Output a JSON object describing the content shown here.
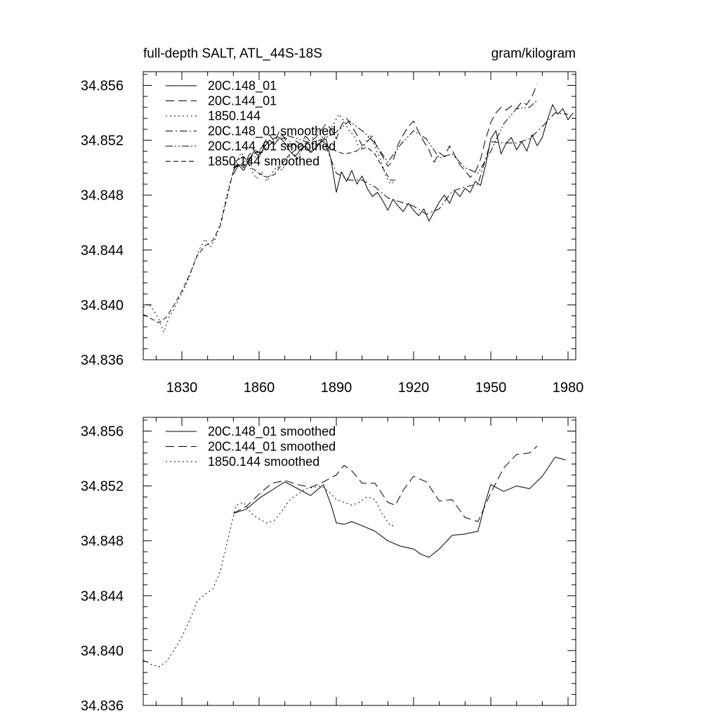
{
  "figure": {
    "left_title": "full-depth SALT, ATL_44S-18S",
    "right_title": "gram/kilogram"
  },
  "chart_data": [
    {
      "type": "line",
      "title": "full-depth SALT, ATL_44S-18S",
      "units": "gram/kilogram",
      "xlim": [
        1815,
        1983
      ],
      "ylim": [
        34.836,
        34.857
      ],
      "x_ticks": [
        1830,
        1860,
        1890,
        1920,
        1950,
        1980
      ],
      "x_tick_labels": [
        "1830",
        "1860",
        "1890",
        "1920",
        "1950",
        "1980"
      ],
      "y_ticks": [
        34.836,
        34.84,
        34.844,
        34.848,
        34.852,
        34.856
      ],
      "y_tick_labels": [
        "34.836",
        "34.840",
        "34.844",
        "34.848",
        "34.852",
        "34.856"
      ],
      "show_x_tick_labels": true,
      "grid": false,
      "legend_position": "top-left",
      "series": [
        {
          "name": "20C.148_01",
          "dash": "solid",
          "x": [
            1850,
            1852,
            1854,
            1856,
            1858,
            1860,
            1862,
            1864,
            1866,
            1868,
            1870,
            1872,
            1874,
            1876,
            1878,
            1880,
            1882,
            1884,
            1886,
            1888,
            1890,
            1892,
            1894,
            1896,
            1898,
            1900,
            1902,
            1904,
            1906,
            1908,
            1910,
            1912,
            1914,
            1916,
            1918,
            1920,
            1922,
            1924,
            1926,
            1928,
            1930,
            1932,
            1934,
            1936,
            1938,
            1940,
            1942,
            1944,
            1946,
            1948,
            1950,
            1952,
            1954,
            1956,
            1958,
            1960,
            1962,
            1964,
            1966,
            1968,
            1970,
            1972,
            1974,
            1976,
            1978,
            1980,
            1982
          ],
          "values": [
            34.8495,
            34.8502,
            34.8498,
            34.8505,
            34.8512,
            34.8508,
            34.8515,
            34.852,
            34.8517,
            34.8522,
            34.8518,
            34.8512,
            34.8508,
            34.8513,
            34.8516,
            34.8511,
            34.8514,
            34.8519,
            34.8521,
            34.8505,
            34.8482,
            34.8497,
            34.849,
            34.8498,
            34.8488,
            34.8494,
            34.8485,
            34.8479,
            34.8482,
            34.8476,
            34.8469,
            34.8477,
            34.8472,
            34.8468,
            34.8474,
            34.8469,
            34.8465,
            34.847,
            34.8461,
            34.8468,
            34.8475,
            34.848,
            34.8474,
            34.8483,
            34.8479,
            34.8485,
            34.8482,
            34.849,
            34.8487,
            34.8502,
            34.8521,
            34.8527,
            34.851,
            34.8518,
            34.8522,
            34.8513,
            34.8519,
            34.8512,
            34.8524,
            34.8516,
            34.8522,
            34.8535,
            34.8546,
            34.8539,
            34.8543,
            34.8535,
            34.854
          ]
        },
        {
          "name": "20C.144_01",
          "dash": "longdash",
          "x": [
            1850,
            1852,
            1854,
            1856,
            1858,
            1860,
            1862,
            1864,
            1866,
            1868,
            1870,
            1872,
            1874,
            1876,
            1878,
            1880,
            1882,
            1884,
            1886,
            1888,
            1890,
            1892,
            1894,
            1896,
            1898,
            1900,
            1902,
            1904,
            1906,
            1908,
            1910,
            1912,
            1914,
            1916,
            1918,
            1920,
            1922,
            1924,
            1926,
            1928,
            1930,
            1932,
            1934,
            1936,
            1938,
            1940,
            1942,
            1944,
            1946,
            1948,
            1950,
            1952,
            1954,
            1956,
            1958,
            1960,
            1962,
            1964,
            1966,
            1968
          ],
          "values": [
            34.8498,
            34.8504,
            34.85,
            34.8509,
            34.8513,
            34.8511,
            34.8518,
            34.8524,
            34.8519,
            34.8527,
            34.8521,
            34.8515,
            34.852,
            34.8517,
            34.8523,
            34.8519,
            34.8522,
            34.8527,
            34.8532,
            34.8528,
            34.8521,
            34.8531,
            34.8536,
            34.853,
            34.8524,
            34.8516,
            34.8519,
            34.8523,
            34.8514,
            34.8508,
            34.8501,
            34.8505,
            34.8517,
            34.8524,
            34.853,
            34.8534,
            34.8526,
            34.8519,
            34.8513,
            34.8504,
            34.8511,
            34.8508,
            34.8516,
            34.8509,
            34.8502,
            34.8498,
            34.8493,
            34.8497,
            34.8506,
            34.8521,
            34.8533,
            34.854,
            34.8544,
            34.8542,
            34.8545,
            34.8543,
            34.8548,
            34.8546,
            34.8552,
            34.8561
          ]
        },
        {
          "name": "1850.144",
          "dash": "dotted",
          "x": [
            1815,
            1817,
            1819,
            1821,
            1823,
            1825,
            1827,
            1829,
            1831,
            1833,
            1835,
            1837,
            1839,
            1841,
            1843,
            1845,
            1847,
            1849,
            1851,
            1853,
            1855,
            1857,
            1859,
            1861,
            1863,
            1865,
            1867,
            1869,
            1871,
            1873,
            1875,
            1877,
            1879,
            1881,
            1883,
            1885,
            1887,
            1889,
            1891,
            1893,
            1895,
            1897,
            1899,
            1901,
            1903,
            1905,
            1907,
            1909,
            1911,
            1913
          ],
          "values": [
            34.8398,
            34.8401,
            34.8396,
            34.839,
            34.838,
            34.8391,
            34.8397,
            34.8405,
            34.8412,
            34.8421,
            34.8432,
            34.8441,
            34.8448,
            34.8442,
            34.8448,
            34.846,
            34.8476,
            34.8491,
            34.8503,
            34.8511,
            34.8506,
            34.8498,
            34.8492,
            34.8497,
            34.849,
            34.8496,
            34.8501,
            34.8498,
            34.8506,
            34.8511,
            34.8507,
            34.8514,
            34.8519,
            34.8522,
            34.8527,
            34.8521,
            34.8526,
            34.8532,
            34.8539,
            34.8534,
            34.8527,
            34.8523,
            34.8513,
            34.8517,
            34.8524,
            34.8515,
            34.8507,
            34.8495,
            34.8488,
            34.8491
          ]
        },
        {
          "name": "20C.148_01 smoothed",
          "dash": "dashdot",
          "x": [
            1850,
            1855,
            1860,
            1865,
            1870,
            1875,
            1880,
            1885,
            1890,
            1895,
            1900,
            1905,
            1910,
            1915,
            1920,
            1925,
            1930,
            1935,
            1940,
            1945,
            1950,
            1955,
            1960,
            1965,
            1970,
            1975,
            1980
          ],
          "values": [
            34.85,
            34.8503,
            34.851,
            34.8518,
            34.8522,
            34.8515,
            34.8512,
            34.852,
            34.8496,
            34.8491,
            34.8491,
            34.8486,
            34.8478,
            34.8475,
            34.8472,
            34.8466,
            34.847,
            34.8483,
            34.8486,
            34.8488,
            34.8519,
            34.8518,
            34.8518,
            34.8521,
            34.853,
            34.854,
            34.8539
          ]
        },
        {
          "name": "20C.144_01 smoothed",
          "dash": "dashdotdot",
          "x": [
            1850,
            1855,
            1860,
            1865,
            1870,
            1875,
            1880,
            1885,
            1890,
            1895,
            1900,
            1905,
            1910,
            1915,
            1920,
            1925,
            1930,
            1935,
            1940,
            1945,
            1950,
            1955,
            1960,
            1965,
            1968
          ],
          "values": [
            34.85,
            34.8505,
            34.8513,
            34.8521,
            34.8524,
            34.8521,
            34.8518,
            34.8521,
            34.8526,
            34.8534,
            34.8527,
            34.8518,
            34.8504,
            34.8517,
            34.8527,
            34.8521,
            34.8507,
            34.851,
            34.85,
            34.8496,
            34.8512,
            34.8532,
            34.8543,
            34.8544,
            34.8549
          ]
        },
        {
          "name": "1850.144 smoothed",
          "dash": "dashed",
          "x": [
            1815,
            1818,
            1821,
            1824,
            1827,
            1830,
            1833,
            1836,
            1839,
            1842,
            1845,
            1848,
            1851,
            1854,
            1857,
            1860,
            1863,
            1866,
            1869,
            1872,
            1875,
            1878,
            1881,
            1884,
            1887,
            1890,
            1893,
            1896,
            1899,
            1902,
            1905,
            1908,
            1911,
            1913
          ],
          "values": [
            34.8393,
            34.839,
            34.8387,
            34.8391,
            34.84,
            34.841,
            34.8422,
            34.8436,
            34.8443,
            34.8447,
            34.8458,
            34.8482,
            34.8505,
            34.8508,
            34.85,
            34.8496,
            34.8493,
            34.8495,
            34.8503,
            34.851,
            34.8514,
            34.8518,
            34.8519,
            34.852,
            34.8515,
            34.8512,
            34.851,
            34.8511,
            34.8513,
            34.8515,
            34.851,
            34.85,
            34.8491,
            34.8491
          ]
        }
      ]
    },
    {
      "type": "line",
      "xlim": [
        1815,
        1983
      ],
      "ylim": [
        34.836,
        34.857
      ],
      "x_ticks": [
        1830,
        1860,
        1890,
        1920,
        1950,
        1980
      ],
      "y_ticks": [
        34.836,
        34.84,
        34.844,
        34.848,
        34.852,
        34.856
      ],
      "y_tick_labels": [
        "34.836",
        "34.840",
        "34.844",
        "34.848",
        "34.852",
        "34.856"
      ],
      "show_x_tick_labels": false,
      "grid": false,
      "legend_position": "top-left",
      "series": [
        {
          "name": "20C.148_01 smoothed",
          "dash": "solid",
          "x": [
            1850,
            1855,
            1860,
            1865,
            1870,
            1875,
            1880,
            1885,
            1888,
            1890,
            1893,
            1896,
            1900,
            1905,
            1910,
            1915,
            1920,
            1923,
            1926,
            1930,
            1935,
            1940,
            1945,
            1948,
            1950,
            1955,
            1960,
            1965,
            1970,
            1975,
            1979
          ],
          "values": [
            34.85,
            34.8503,
            34.8511,
            34.8517,
            34.8523,
            34.8518,
            34.8513,
            34.8521,
            34.8506,
            34.8493,
            34.8492,
            34.8494,
            34.8491,
            34.8487,
            34.848,
            34.8476,
            34.8474,
            34.847,
            34.8468,
            34.8474,
            34.8484,
            34.8485,
            34.8487,
            34.8509,
            34.8521,
            34.8516,
            34.852,
            34.8518,
            34.8527,
            34.8541,
            34.8539
          ]
        },
        {
          "name": "20C.144_01 smoothed",
          "dash": "longdash",
          "x": [
            1850,
            1855,
            1860,
            1865,
            1870,
            1875,
            1880,
            1885,
            1890,
            1893,
            1896,
            1900,
            1905,
            1910,
            1913,
            1916,
            1920,
            1925,
            1930,
            1935,
            1940,
            1945,
            1950,
            1955,
            1960,
            1965,
            1968
          ],
          "values": [
            34.85,
            34.8505,
            34.8514,
            34.8522,
            34.8524,
            34.8521,
            34.8519,
            34.8523,
            34.8528,
            34.8535,
            34.8531,
            34.8522,
            34.8522,
            34.8508,
            34.8506,
            34.8517,
            34.8527,
            34.8523,
            34.8509,
            34.851,
            34.8497,
            34.8494,
            34.8515,
            34.8533,
            34.8543,
            34.8544,
            34.8549
          ]
        },
        {
          "name": "1850.144 smoothed",
          "dash": "dotted",
          "x": [
            1815,
            1818,
            1821,
            1824,
            1827,
            1830,
            1833,
            1836,
            1839,
            1842,
            1845,
            1848,
            1851,
            1854,
            1857,
            1860,
            1863,
            1866,
            1869,
            1872,
            1875,
            1878,
            1881,
            1884,
            1887,
            1890,
            1893,
            1896,
            1899,
            1902,
            1905,
            1908,
            1911,
            1913
          ],
          "values": [
            34.8393,
            34.839,
            34.8388,
            34.8392,
            34.84,
            34.841,
            34.8422,
            34.8436,
            34.8441,
            34.8445,
            34.8458,
            34.8482,
            34.8506,
            34.8508,
            34.85,
            34.8496,
            34.8493,
            34.8495,
            34.8502,
            34.851,
            34.8514,
            34.8518,
            34.8519,
            34.852,
            34.8516,
            34.851,
            34.8508,
            34.8506,
            34.8508,
            34.8512,
            34.851,
            34.8499,
            34.8491,
            34.8491
          ]
        }
      ]
    }
  ]
}
